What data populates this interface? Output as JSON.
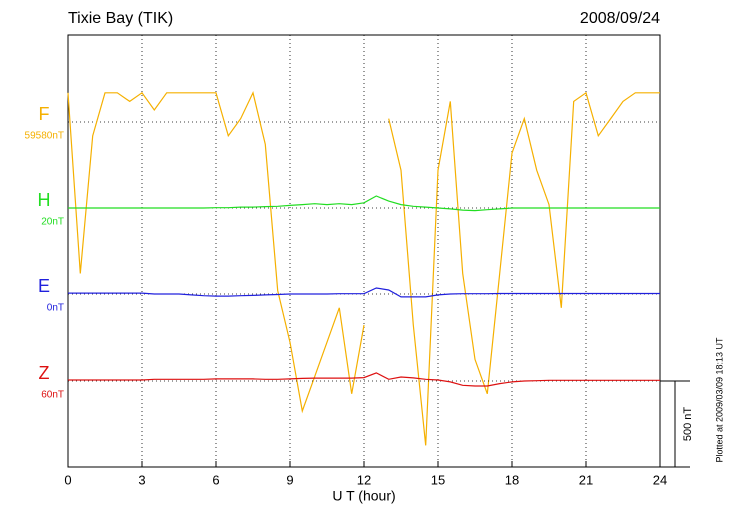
{
  "chart_data": {
    "type": "line",
    "title": "Tixie Bay (TIK)",
    "date": "2008/09/24",
    "x_label": "U T (hour)",
    "footnote": "Plotted at 2009/03/09 18:13 UT",
    "scale_bar": {
      "value": 500,
      "label": "500 nT"
    },
    "xlim": [
      0,
      24
    ],
    "xticks": [
      0,
      3,
      6,
      9,
      12,
      15,
      18,
      21,
      24
    ],
    "grid": true,
    "x": [
      0,
      0.5,
      1,
      1.5,
      2,
      2.5,
      3,
      3.5,
      4,
      4.5,
      5,
      5.5,
      6,
      6.5,
      7,
      7.5,
      8,
      8.5,
      9,
      9.5,
      10,
      10.5,
      11,
      11.5,
      12,
      12.5,
      13,
      13.5,
      14,
      14.5,
      15,
      15.5,
      16,
      16.5,
      17,
      17.5,
      18,
      18.5,
      19,
      19.5,
      20,
      20.5,
      21,
      21.5,
      22,
      22.5,
      23,
      23.5,
      24
    ],
    "series": [
      {
        "name": "F",
        "color": "#f5b000",
        "baseline": {
          "value": 59580,
          "label": "59580nT"
        },
        "values": [
          59750,
          58700,
          59500,
          59750,
          59750,
          59700,
          59750,
          59650,
          59750,
          59750,
          59750,
          59750,
          59750,
          59500,
          59600,
          59750,
          59450,
          58600,
          58300,
          57900,
          58100,
          58300,
          58500,
          58000,
          58400,
          null,
          59600,
          59300,
          58400,
          57700,
          59300,
          59700,
          58700,
          58200,
          58000,
          58700,
          59400,
          59600,
          59300,
          59100,
          58500,
          59700,
          59750,
          59500,
          59600,
          59700,
          59750,
          59750,
          59750
        ]
      },
      {
        "name": "H",
        "color": "#22dd22",
        "baseline": {
          "value": 20,
          "label": "20nT"
        },
        "values": [
          20,
          20,
          20,
          20,
          20,
          20,
          20,
          20,
          20,
          20,
          20,
          20,
          22,
          22,
          25,
          25,
          28,
          30,
          35,
          40,
          45,
          40,
          45,
          40,
          50,
          90,
          60,
          40,
          30,
          25,
          20,
          15,
          8,
          5,
          10,
          15,
          20,
          20,
          20,
          20,
          20,
          20,
          20,
          20,
          20,
          20,
          20,
          20,
          20
        ]
      },
      {
        "name": "E",
        "color": "#2020dd",
        "baseline": {
          "value": 0,
          "label": "0nT"
        },
        "values": [
          5,
          5,
          5,
          5,
          5,
          5,
          5,
          0,
          0,
          0,
          -5,
          -10,
          -12,
          -12,
          -10,
          -8,
          -5,
          -3,
          0,
          0,
          0,
          0,
          2,
          2,
          2,
          35,
          23,
          -17,
          -17,
          -17,
          -5,
          0,
          2,
          2,
          2,
          3,
          3,
          3,
          3,
          3,
          3,
          3,
          3,
          3,
          3,
          3,
          3,
          3,
          3
        ]
      },
      {
        "name": "Z",
        "color": "#dd1010",
        "baseline": {
          "value": 60,
          "label": "60nT"
        },
        "values": [
          66,
          66,
          66,
          66,
          66,
          66,
          66,
          70,
          70,
          70,
          70,
          70,
          72,
          72,
          72,
          72,
          70,
          70,
          72,
          75,
          77,
          77,
          77,
          77,
          80,
          107,
          70,
          83,
          78,
          70,
          66,
          55,
          35,
          31,
          31,
          45,
          55,
          60,
          62,
          64,
          64,
          64,
          64,
          64,
          64,
          64,
          64,
          64,
          64
        ]
      }
    ]
  }
}
